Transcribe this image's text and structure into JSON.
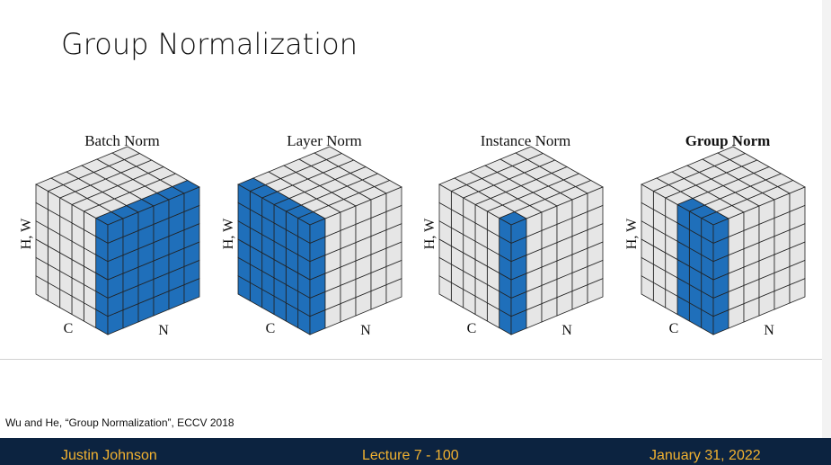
{
  "header": {
    "title": "Group Normalization"
  },
  "diagrams": [
    {
      "title": "Batch Norm",
      "height_label": "H, W",
      "c_label": "C",
      "n_label": "N"
    },
    {
      "title": "Layer Norm",
      "height_label": "H, W",
      "c_label": "C",
      "n_label": "N"
    },
    {
      "title": "Instance Norm",
      "height_label": "H, W",
      "c_label": "C",
      "n_label": "N"
    },
    {
      "title": "Group Norm",
      "height_label": "H, W",
      "c_label": "C",
      "n_label": "N"
    }
  ],
  "citation": "Wu and He, “Group Normalization”, ECCV 2018",
  "footer": {
    "author": "Justin Johnson",
    "lecture": "Lecture 7 - 100",
    "date": "January 31, 2022"
  }
}
